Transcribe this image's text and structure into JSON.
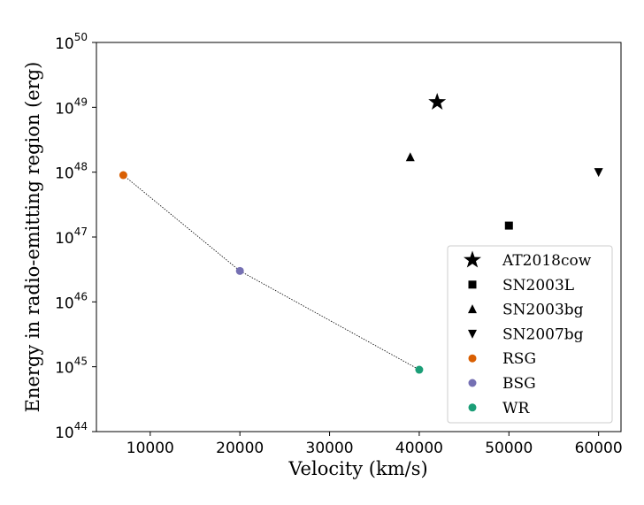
{
  "chart_data": {
    "type": "scatter",
    "xlabel": "Velocity (km/s)",
    "ylabel": "Energy in radio-emitting region (erg)",
    "xlim": [
      4000,
      62500
    ],
    "ylim": [
      1e+44,
      1e+50
    ],
    "yscale": "log",
    "xticks": [
      10000,
      20000,
      30000,
      40000,
      50000,
      60000
    ],
    "yticks": [
      44,
      45,
      46,
      47,
      48,
      49,
      50
    ],
    "grid": false,
    "legend_position": "lower-right",
    "series": [
      {
        "name": "AT2018cow",
        "marker": "star",
        "color": "#000000",
        "points": [
          {
            "x": 42000,
            "y": 1.2e+49
          }
        ]
      },
      {
        "name": "SN2003L",
        "marker": "square",
        "color": "#000000",
        "points": [
          {
            "x": 50000,
            "y": 1.5e+47
          }
        ]
      },
      {
        "name": "SN2003bg",
        "marker": "triangle-up",
        "color": "#000000",
        "points": [
          {
            "x": 39000,
            "y": 1.7e+48
          }
        ]
      },
      {
        "name": "SN2007bg",
        "marker": "triangle-down",
        "color": "#000000",
        "points": [
          {
            "x": 60000,
            "y": 1e+48
          }
        ]
      },
      {
        "name": "RSG",
        "marker": "circle",
        "color": "#d95f02",
        "points": [
          {
            "x": 7000,
            "y": 9e+47
          }
        ]
      },
      {
        "name": "BSG",
        "marker": "circle",
        "color": "#7570b3",
        "points": [
          {
            "x": 20000,
            "y": 3e+46
          }
        ]
      },
      {
        "name": "WR",
        "marker": "circle",
        "color": "#1b9e77",
        "points": [
          {
            "x": 40000,
            "y": 9e+44
          }
        ]
      }
    ],
    "connector_line": {
      "style": "dotted",
      "color": "#000000",
      "points": [
        {
          "x": 7000,
          "y": 9e+47
        },
        {
          "x": 20000,
          "y": 3e+46
        },
        {
          "x": 40000,
          "y": 9e+44
        }
      ]
    }
  }
}
